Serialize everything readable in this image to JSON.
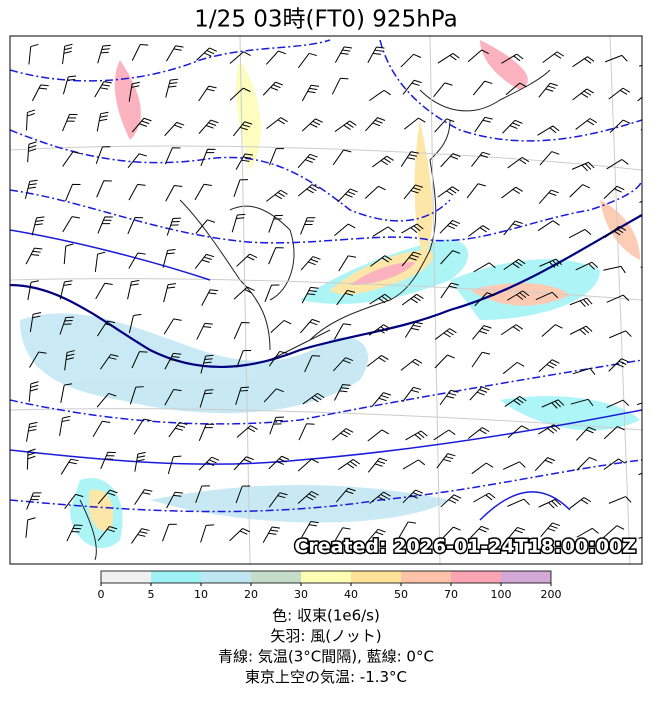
{
  "header": {
    "title": "1/25  03時(FT0)     925hPa"
  },
  "map": {
    "stamp": "Created: 2026-01-24T18:00:00Z"
  },
  "colorbar": {
    "ticks": [
      0,
      5,
      10,
      20,
      30,
      40,
      50,
      70,
      100,
      200
    ],
    "colors": [
      "#f0f0f0",
      "#9ff3f6",
      "#bfe6f3",
      "#c5dcc8",
      "#fdfdb4",
      "#fde39a",
      "#fdc3a8",
      "#fba5b4",
      "#d2a8d6"
    ]
  },
  "legend": {
    "lines": [
      "色: 収束(1e6/s)",
      "矢羽: 風(ノット)",
      "青線: 気温(3°C間隔), 藍線: 0°C",
      "東京上空の気温: -1.3°C"
    ]
  }
}
